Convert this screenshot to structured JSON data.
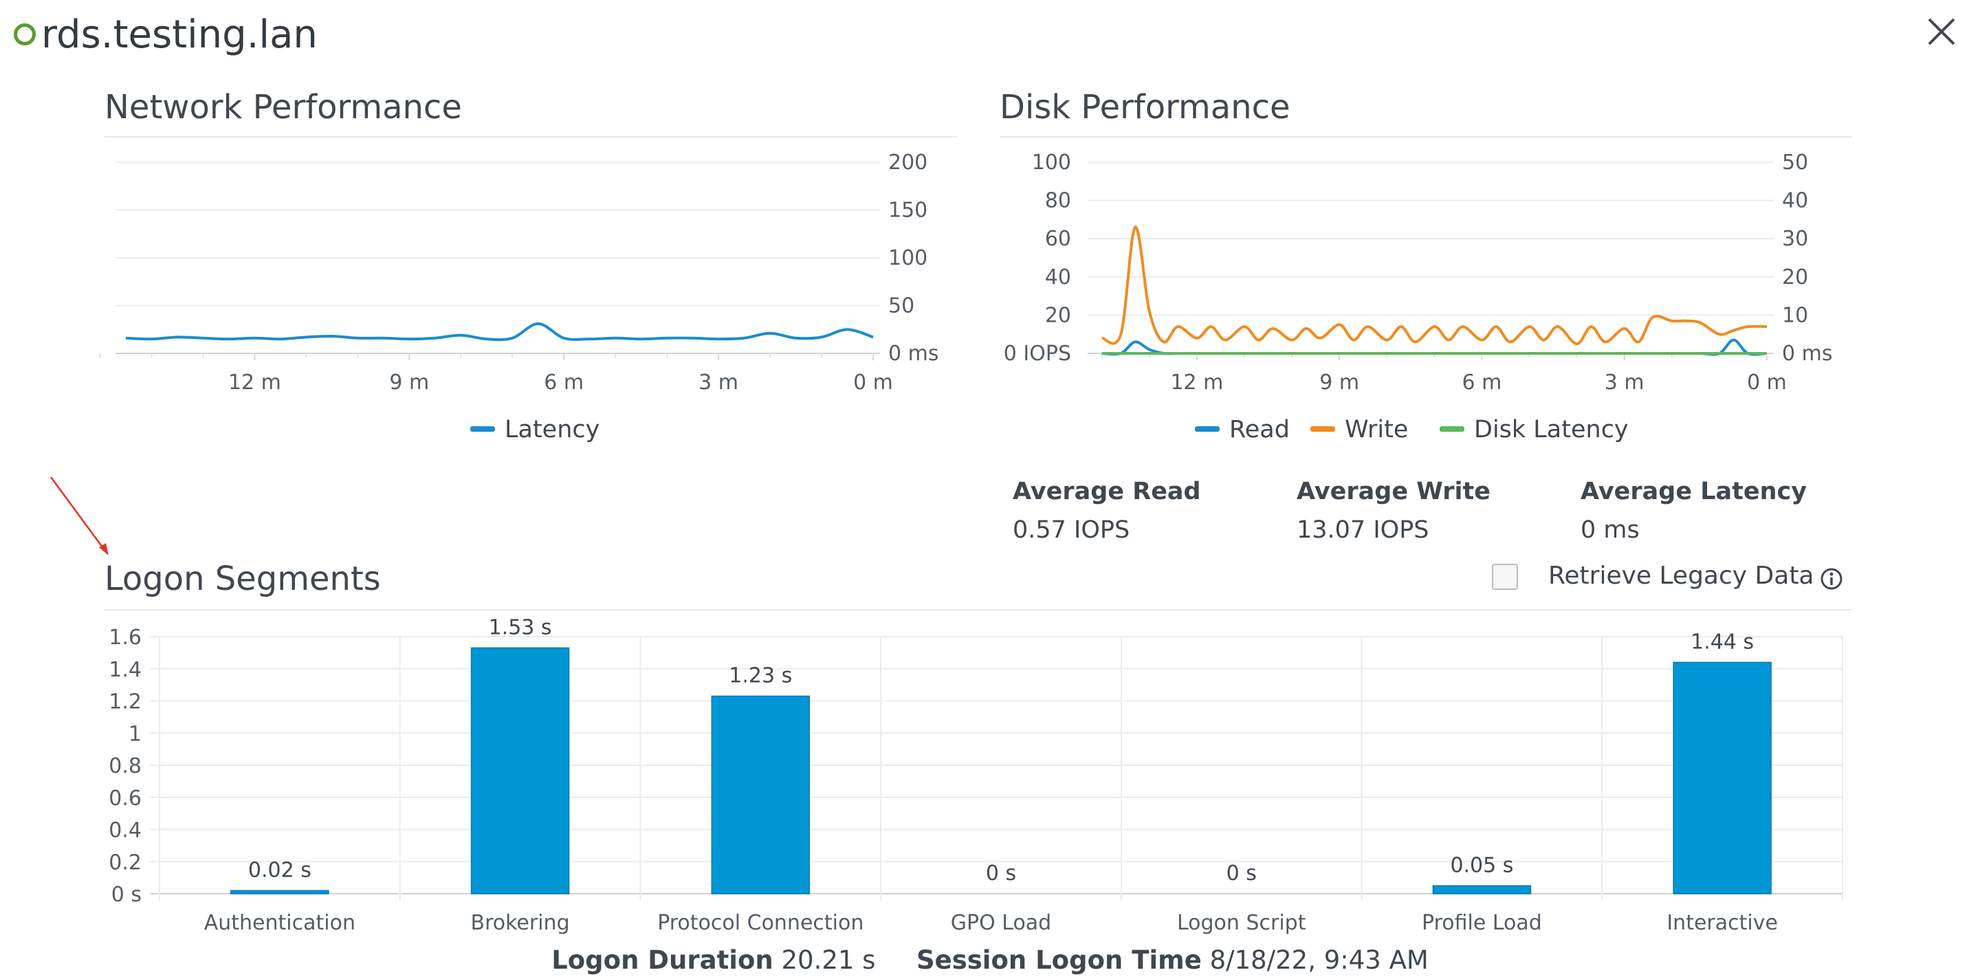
{
  "header": {
    "title": "rds.testing.lan",
    "status_color": "#5b9a2a",
    "close_icon": "close-icon"
  },
  "network": {
    "title": "Network Performance",
    "chart_data": {
      "type": "line",
      "x": [
        14.5,
        14,
        13.5,
        13,
        12.5,
        12,
        11.5,
        11,
        10.5,
        10,
        9.5,
        9,
        8.5,
        8,
        7.5,
        7,
        6.5,
        6,
        5.5,
        5,
        4.5,
        4,
        3.5,
        3,
        2.5,
        2,
        1.5,
        1,
        0.5,
        0
      ],
      "series": [
        {
          "name": "Latency",
          "color": "#1a8ccf",
          "values": [
            16,
            15,
            17,
            16,
            15,
            16,
            15,
            17,
            18,
            16,
            16,
            15,
            16,
            19,
            15,
            16,
            31,
            16,
            15,
            16,
            15,
            16,
            16,
            15,
            16,
            21,
            16,
            17,
            25,
            17
          ]
        }
      ],
      "xticks": [
        12,
        9,
        6,
        3,
        0
      ],
      "xtick_labels": [
        "12 m",
        "9 m",
        "6 m",
        "3 m",
        "0 m"
      ],
      "xlim": [
        14.7,
        0
      ],
      "y_right_ticks": [
        0,
        50,
        100,
        150,
        200
      ],
      "y_right_labels": [
        "0 ms",
        "50",
        "100",
        "150",
        "200"
      ],
      "ylim": [
        0,
        200
      ],
      "legend_position": "bottom",
      "grid": true
    }
  },
  "disk": {
    "title": "Disk Performance",
    "chart_data": {
      "type": "line",
      "x": [
        14,
        13.6,
        13.3,
        13,
        12.7,
        12.4,
        12,
        11.7,
        11.4,
        11,
        10.7,
        10.4,
        10,
        9.7,
        9.4,
        9,
        8.7,
        8.4,
        8,
        7.7,
        7.4,
        7,
        6.7,
        6.4,
        6,
        5.7,
        5.4,
        5,
        4.7,
        4.4,
        4,
        3.7,
        3.4,
        3,
        2.7,
        2.4,
        2,
        1.7,
        1.4,
        1,
        0.7,
        0.4,
        0
      ],
      "series": [
        {
          "name": "Read",
          "color": "#1a8ccf",
          "axis": "left",
          "values": [
            0,
            0,
            6,
            2,
            0,
            0,
            0,
            0,
            0,
            0,
            0,
            0,
            0,
            0,
            0,
            0,
            0,
            0,
            0,
            0,
            0,
            0,
            0,
            0,
            0,
            0,
            0,
            0,
            0,
            0,
            0,
            0,
            0,
            0,
            0,
            0,
            0,
            0,
            0,
            0,
            7,
            0,
            0
          ]
        },
        {
          "name": "Write",
          "color": "#f18b1f",
          "axis": "left",
          "values": [
            8,
            10,
            66,
            22,
            6,
            14,
            8,
            14,
            7,
            14,
            7,
            13,
            7,
            13,
            8,
            15,
            7,
            14,
            7,
            14,
            6,
            14,
            7,
            14,
            7,
            14,
            6,
            14,
            7,
            14,
            5,
            14,
            6,
            13,
            6,
            19,
            17,
            17,
            16,
            10,
            12,
            14,
            14
          ]
        },
        {
          "name": "Disk Latency",
          "color": "#5cb85c",
          "axis": "right",
          "values": [
            0,
            0,
            0,
            0,
            0,
            0,
            0,
            0,
            0,
            0,
            0,
            0,
            0,
            0,
            0,
            0,
            0,
            0,
            0,
            0,
            0,
            0,
            0,
            0,
            0,
            0,
            0,
            0,
            0,
            0,
            0,
            0,
            0,
            0,
            0,
            0,
            0,
            0,
            0,
            0,
            0,
            0,
            0
          ]
        }
      ],
      "xticks": [
        12,
        9,
        6,
        3,
        0
      ],
      "xtick_labels": [
        "12 m",
        "9 m",
        "6 m",
        "3 m",
        "0 m"
      ],
      "xlim": [
        14.3,
        0
      ],
      "y_left_ticks": [
        0,
        20,
        40,
        60,
        80,
        100
      ],
      "y_left_labels": [
        "0 IOPS",
        "20",
        "40",
        "60",
        "80",
        "100"
      ],
      "ylim_left": [
        0,
        100
      ],
      "y_right_ticks": [
        0,
        10,
        20,
        30,
        40,
        50
      ],
      "y_right_labels": [
        "0 ms",
        "10",
        "20",
        "30",
        "40",
        "50"
      ],
      "ylim_right": [
        0,
        50
      ],
      "legend_position": "bottom",
      "grid": true
    },
    "stats": [
      {
        "label": "Average Read",
        "value": "0.57 IOPS"
      },
      {
        "label": "Average Write",
        "value": "13.07 IOPS"
      },
      {
        "label": "Average Latency",
        "value": "0 ms"
      }
    ]
  },
  "logon": {
    "title": "Logon Segments",
    "legacy_label": "Retrieve Legacy Data",
    "legacy_checked": false,
    "info_icon": "info-icon",
    "chart_data": {
      "type": "bar",
      "categories": [
        "Authentication",
        "Brokering",
        "Protocol Connection",
        "GPO Load",
        "Logon Script",
        "Profile Load",
        "Interactive"
      ],
      "values": [
        0.02,
        1.53,
        1.23,
        0,
        0,
        0.05,
        1.44
      ],
      "value_labels": [
        "0.02 s",
        "1.53 s",
        "1.23 s",
        "0 s",
        "0 s",
        "0.05 s",
        "1.44 s"
      ],
      "color": "#0096d6",
      "yticks": [
        0,
        0.2,
        0.4,
        0.6,
        0.8,
        1,
        1.2,
        1.4,
        1.6
      ],
      "ytick_labels": [
        "0 s",
        "0.2",
        "0.4",
        "0.6",
        "0.8",
        "1",
        "1.2",
        "1.4",
        "1.6"
      ],
      "ylim": [
        0,
        1.6
      ],
      "grid": true
    },
    "footer": {
      "duration_label": "Logon Duration",
      "duration_value": "20.21 s",
      "session_label": "Session Logon Time",
      "session_value": "8/18/22, 9:43 AM"
    }
  }
}
